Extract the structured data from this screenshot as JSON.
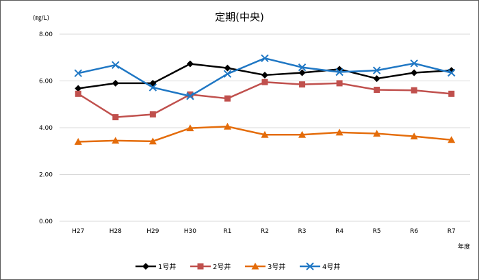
{
  "chart_data": {
    "type": "line",
    "title": "定期(中央)",
    "ylabel": "(㎎/L)",
    "xlabel": "年度",
    "categories": [
      "H27",
      "H28",
      "H29",
      "H30",
      "R1",
      "R2",
      "R3",
      "R4",
      "R5",
      "R6",
      "R7"
    ],
    "ylim": [
      0,
      8
    ],
    "yticks": [
      "0.00",
      "2.00",
      "4.00",
      "6.00",
      "8.00"
    ],
    "grid": true,
    "legend_position": "bottom",
    "series": [
      {
        "name": "1号井",
        "color": "#000000",
        "marker": "diamond",
        "values": [
          5.68,
          5.9,
          5.9,
          6.73,
          6.55,
          6.25,
          6.35,
          6.5,
          6.1,
          6.35,
          6.45
        ]
      },
      {
        "name": "2号井",
        "color": "#c0504d",
        "marker": "square",
        "values": [
          5.45,
          4.45,
          4.57,
          5.42,
          5.25,
          5.95,
          5.85,
          5.9,
          5.62,
          5.6,
          5.45
        ]
      },
      {
        "name": "3号井",
        "color": "#e46c0a",
        "marker": "triangle",
        "values": [
          3.4,
          3.45,
          3.42,
          3.98,
          4.05,
          3.7,
          3.7,
          3.8,
          3.75,
          3.63,
          3.48
        ]
      },
      {
        "name": "4号井",
        "color": "#1f77c4",
        "marker": "x",
        "values": [
          6.33,
          6.68,
          5.72,
          5.35,
          6.3,
          6.97,
          6.58,
          6.38,
          6.45,
          6.75,
          6.35
        ]
      }
    ]
  }
}
